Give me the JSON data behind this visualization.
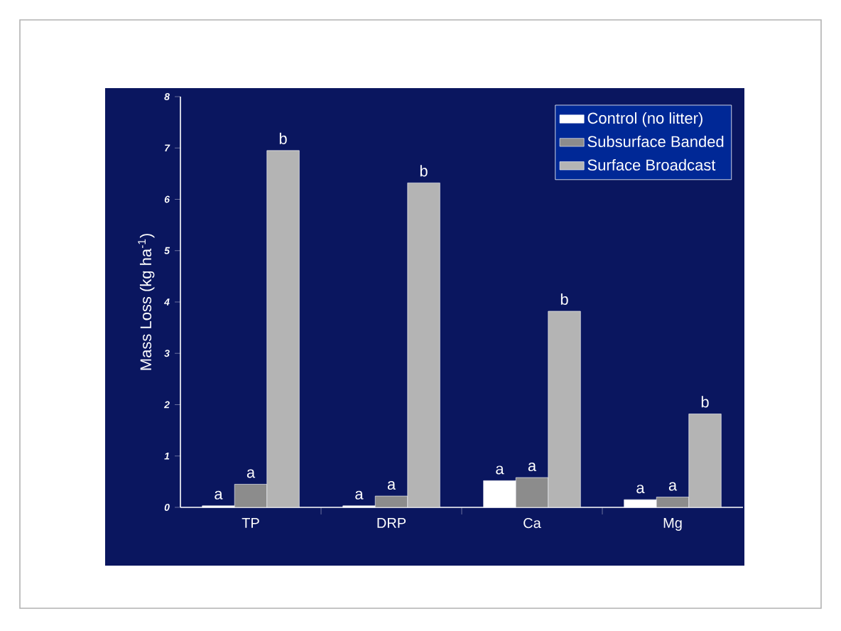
{
  "chart_data": {
    "type": "bar",
    "ylabel": "Mass Loss (kg ha$^{-1}$)",
    "categories": [
      "TP",
      "DRP",
      "Ca",
      "Mg"
    ],
    "ylim": [
      0,
      8
    ],
    "yticks": [
      0,
      1,
      2,
      3,
      4,
      5,
      6,
      7,
      8
    ],
    "grid": false,
    "legend": "top right",
    "series": [
      {
        "name": "Control (no litter)",
        "color": "#ffffff",
        "values": [
          0.03,
          0.03,
          0.52,
          0.15
        ],
        "value_labels": [
          "a",
          "a",
          "a",
          "a"
        ]
      },
      {
        "name": "Subsurface Banded",
        "color": "#8c8c8c",
        "values": [
          0.45,
          0.22,
          0.58,
          0.2
        ],
        "value_labels": [
          "a",
          "a",
          "a",
          "a"
        ]
      },
      {
        "name": "Surface Broadcast",
        "color": "#b4b4b4",
        "values": [
          6.95,
          6.32,
          3.82,
          1.82
        ],
        "value_labels": [
          "b",
          "b",
          "b",
          "b"
        ]
      }
    ]
  }
}
